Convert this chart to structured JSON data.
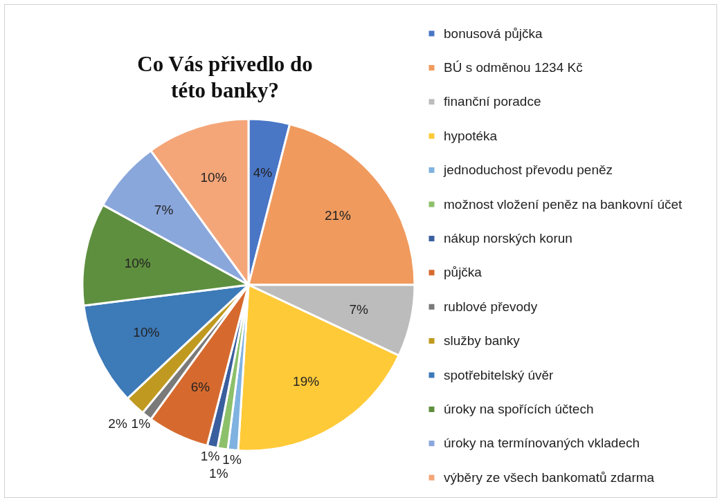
{
  "chart_data": {
    "type": "pie",
    "title": "Co Vás přivedlo do této banky?",
    "categories": [
      "bonusová půjčka",
      "BÚ s odměnou 1234 Kč",
      "finanční poradce",
      "hypotéka",
      "jednoduchost převodu peněz",
      "možnost vložení peněz na bankovní účet",
      "nákup norských korun",
      "půjčka",
      "rublové převody",
      "služby banky",
      "spotřebitelský úvěr",
      "úroky na spořících účtech",
      "úroky na termínovaných vkladech",
      "výběry ze všech bankomatů zdarma"
    ],
    "values": [
      4,
      21,
      7,
      19,
      1,
      1,
      1,
      6,
      1,
      2,
      10,
      10,
      7,
      10
    ],
    "value_labels": [
      "4%",
      "21%",
      "7%",
      "19%",
      "1%",
      "1%",
      "1%",
      "6%",
      "1%",
      "2%",
      "10%",
      "10%",
      "7%",
      "10%"
    ],
    "colors": [
      "#4a76c6",
      "#f09a5e",
      "#bcbcbc",
      "#ffca38",
      "#7fb2e0",
      "#8cc06a",
      "#3a5f9e",
      "#d66a2e",
      "#7a7a7a",
      "#c09a20",
      "#3d7ab8",
      "#5e8f3e",
      "#8aa7dc",
      "#f4a679"
    ],
    "legend": "right"
  }
}
